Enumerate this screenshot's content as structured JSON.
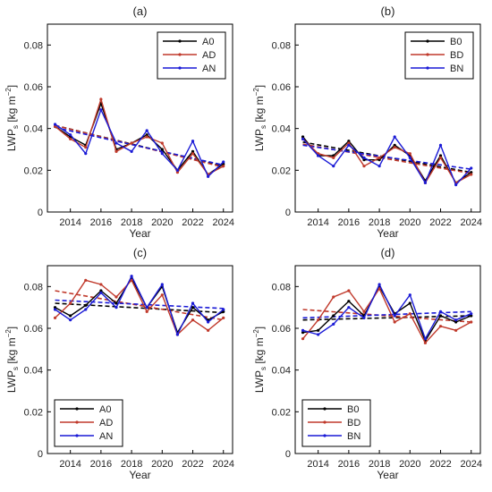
{
  "chart_data": [
    {
      "type": "line",
      "panel_label": "(a)",
      "xlabel": "Year",
      "ylabel_main": "LWP",
      "ylabel_sub": "s",
      "ylabel_unit": "[kg m",
      "ylabel_exp": "−2",
      "ylabel_close": "]",
      "xlim": [
        2012.5,
        2024.6
      ],
      "ylim": [
        0,
        0.09
      ],
      "xticks": [
        2014,
        2016,
        2018,
        2020,
        2022,
        2024
      ],
      "yticks": [
        0,
        0.02,
        0.04,
        0.06,
        0.08
      ],
      "ytick_labels": [
        "0",
        "0.02",
        "0.04",
        "0.06",
        "0.08"
      ],
      "legend_position": "top-right",
      "x": [
        2013,
        2014,
        2015,
        2016,
        2017,
        2018,
        2019,
        2020,
        2021,
        2022,
        2023,
        2024
      ],
      "series": [
        {
          "name": "A0",
          "color": "#000000",
          "values": [
            0.041,
            0.036,
            0.032,
            0.052,
            0.03,
            0.033,
            0.037,
            0.03,
            0.02,
            0.029,
            0.018,
            0.023
          ],
          "trend": [
            0.0415,
            0.0219
          ]
        },
        {
          "name": "AD",
          "color": "#c0392b",
          "values": [
            0.041,
            0.035,
            0.031,
            0.054,
            0.029,
            0.033,
            0.036,
            0.033,
            0.019,
            0.028,
            0.018,
            0.022
          ],
          "trend": [
            0.0415,
            0.0215
          ]
        },
        {
          "name": "AN",
          "color": "#1a1ad6",
          "values": [
            0.042,
            0.037,
            0.028,
            0.049,
            0.033,
            0.029,
            0.039,
            0.028,
            0.02,
            0.034,
            0.017,
            0.024
          ],
          "trend": [
            0.0405,
            0.0225
          ]
        }
      ]
    },
    {
      "type": "line",
      "panel_label": "(b)",
      "xlabel": "Year",
      "ylabel_main": "LWP",
      "ylabel_sub": "s",
      "ylabel_unit": "[kg m",
      "ylabel_exp": "−2",
      "ylabel_close": "]",
      "xlim": [
        2012.5,
        2024.6
      ],
      "ylim": [
        0,
        0.09
      ],
      "xticks": [
        2014,
        2016,
        2018,
        2020,
        2022,
        2024
      ],
      "yticks": [
        0,
        0.02,
        0.04,
        0.06,
        0.08
      ],
      "ytick_labels": [
        "0",
        "0.02",
        "0.04",
        "0.06",
        "0.08"
      ],
      "legend_position": "top-right",
      "x": [
        2013,
        2014,
        2015,
        2016,
        2017,
        2018,
        2019,
        2020,
        2021,
        2022,
        2023,
        2024
      ],
      "series": [
        {
          "name": "B0",
          "color": "#000000",
          "values": [
            0.036,
            0.027,
            0.027,
            0.034,
            0.025,
            0.025,
            0.032,
            0.027,
            0.015,
            0.027,
            0.014,
            0.019
          ],
          "trend": [
            0.0335,
            0.019
          ]
        },
        {
          "name": "BD",
          "color": "#c0392b",
          "values": [
            0.035,
            0.028,
            0.026,
            0.033,
            0.022,
            0.026,
            0.031,
            0.028,
            0.014,
            0.026,
            0.014,
            0.018
          ],
          "trend": [
            0.0325,
            0.0185
          ]
        },
        {
          "name": "BN",
          "color": "#1a1ad6",
          "values": [
            0.035,
            0.027,
            0.022,
            0.032,
            0.026,
            0.022,
            0.036,
            0.026,
            0.014,
            0.032,
            0.013,
            0.021
          ],
          "trend": [
            0.032,
            0.0205
          ]
        }
      ]
    },
    {
      "type": "line",
      "panel_label": "(c)",
      "xlabel": "Year",
      "ylabel_main": "LWP",
      "ylabel_sub": "s",
      "ylabel_unit": "[kg m",
      "ylabel_exp": "−2",
      "ylabel_close": "]",
      "xlim": [
        2012.5,
        2024.6
      ],
      "ylim": [
        0,
        0.09
      ],
      "xticks": [
        2014,
        2016,
        2018,
        2020,
        2022,
        2024
      ],
      "yticks": [
        0,
        0.02,
        0.04,
        0.06,
        0.08
      ],
      "ytick_labels": [
        "0",
        "0.02",
        "0.04",
        "0.06",
        "0.08"
      ],
      "legend_position": "bottom-left",
      "x": [
        2013,
        2014,
        2015,
        2016,
        2017,
        2018,
        2019,
        2020,
        2021,
        2022,
        2023,
        2024
      ],
      "series": [
        {
          "name": "A0",
          "color": "#000000",
          "values": [
            0.07,
            0.066,
            0.071,
            0.078,
            0.072,
            0.084,
            0.07,
            0.08,
            0.058,
            0.07,
            0.064,
            0.068
          ],
          "trend": [
            0.072,
            0.0675
          ]
        },
        {
          "name": "AD",
          "color": "#c0392b",
          "values": [
            0.065,
            0.072,
            0.083,
            0.081,
            0.075,
            0.083,
            0.068,
            0.076,
            0.057,
            0.064,
            0.059,
            0.065
          ],
          "trend": [
            0.078,
            0.064
          ]
        },
        {
          "name": "AN",
          "color": "#1a1ad6",
          "values": [
            0.069,
            0.064,
            0.069,
            0.077,
            0.07,
            0.085,
            0.07,
            0.081,
            0.057,
            0.072,
            0.063,
            0.069
          ],
          "trend": [
            0.0735,
            0.0695
          ]
        }
      ]
    },
    {
      "type": "line",
      "panel_label": "(d)",
      "xlabel": "Year",
      "ylabel_main": "LWP",
      "ylabel_sub": "s",
      "ylabel_unit": "[kg m",
      "ylabel_exp": "−2",
      "ylabel_close": "]",
      "xlim": [
        2012.5,
        2024.6
      ],
      "ylim": [
        0,
        0.09
      ],
      "xticks": [
        2014,
        2016,
        2018,
        2020,
        2022,
        2024
      ],
      "yticks": [
        0,
        0.02,
        0.04,
        0.06,
        0.08
      ],
      "ytick_labels": [
        "0",
        "0.02",
        "0.04",
        "0.06",
        "0.08"
      ],
      "legend_position": "bottom-left",
      "x": [
        2013,
        2014,
        2015,
        2016,
        2017,
        2018,
        2019,
        2020,
        2021,
        2022,
        2023,
        2024
      ],
      "series": [
        {
          "name": "B0",
          "color": "#000000",
          "values": [
            0.058,
            0.059,
            0.066,
            0.073,
            0.066,
            0.08,
            0.067,
            0.072,
            0.054,
            0.066,
            0.063,
            0.066
          ],
          "trend": [
            0.064,
            0.066
          ]
        },
        {
          "name": "BD",
          "color": "#c0392b",
          "values": [
            0.055,
            0.064,
            0.075,
            0.078,
            0.068,
            0.079,
            0.063,
            0.067,
            0.053,
            0.061,
            0.059,
            0.063
          ],
          "trend": [
            0.069,
            0.063
          ]
        },
        {
          "name": "BN",
          "color": "#1a1ad6",
          "values": [
            0.059,
            0.057,
            0.062,
            0.07,
            0.065,
            0.081,
            0.066,
            0.076,
            0.055,
            0.068,
            0.064,
            0.067
          ],
          "trend": [
            0.065,
            0.068
          ]
        }
      ]
    }
  ]
}
